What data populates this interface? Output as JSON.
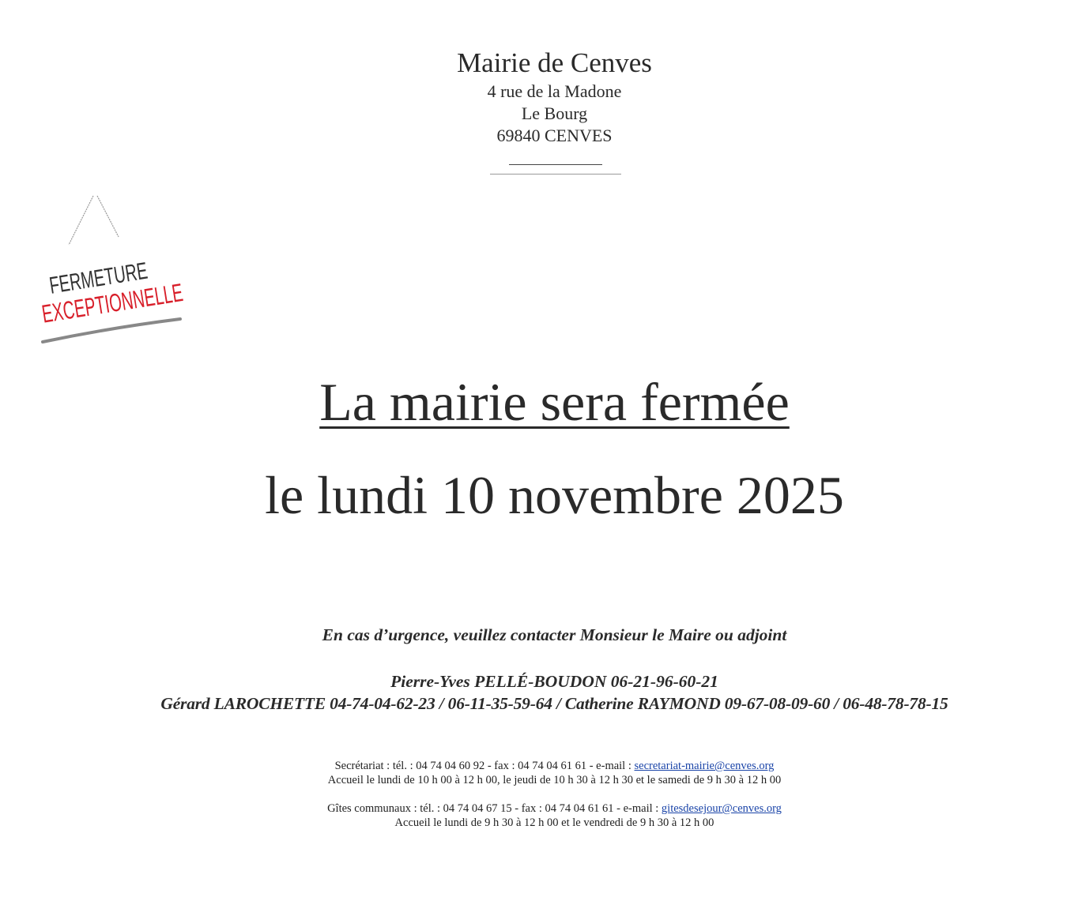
{
  "header": {
    "organization": "Mairie de Cenves",
    "address_line1": "4 rue de la Madone",
    "address_line2": "Le Bourg",
    "address_line3": "69840 CENVES"
  },
  "sign": {
    "line1": "FERMETURE",
    "line2": "EXCEPTIONNELLE",
    "line1_color": "#333333",
    "line2_color": "#d81f2a"
  },
  "main": {
    "title": "La mairie sera fermée",
    "date": "le lundi 10 novembre 2025"
  },
  "emergency": {
    "intro": "En cas d’urgence, veuillez contacter Monsieur le Maire ou adjoint",
    "contact1": "Pierre-Yves PELLÉ-BOUDON 06-21-96-60-21",
    "contact2": "Gérard LAROCHETTE 04-74-04-62-23 / 06-11-35-59-64 / Catherine RAYMOND 09-67-08-09-60 / 06-48-78-78-15"
  },
  "footer": {
    "secretariat_text": "Secrétariat : tél. : 04 74 04 60 92 - fax : 04 74 04 61 61 - e-mail : ",
    "secretariat_email": "secretariat-mairie@cenves.org",
    "secretariat_hours": "Accueil le lundi de 10 h 00 à 12 h 00, le jeudi de 10 h 30 à 12 h 30 et le samedi de 9 h 30 à 12 h 00",
    "gites_text": "Gîtes communaux : tél. : 04 74 04 67 15 - fax : 04 74 04 61 61 - e-mail : ",
    "gites_email": "gitesdesejour@cenves.org",
    "gites_hours": "Accueil le lundi de 9 h 30 à 12 h 00 et le vendredi de 9 h 30 à 12 h 00",
    "link_color": "#1a44a8"
  }
}
